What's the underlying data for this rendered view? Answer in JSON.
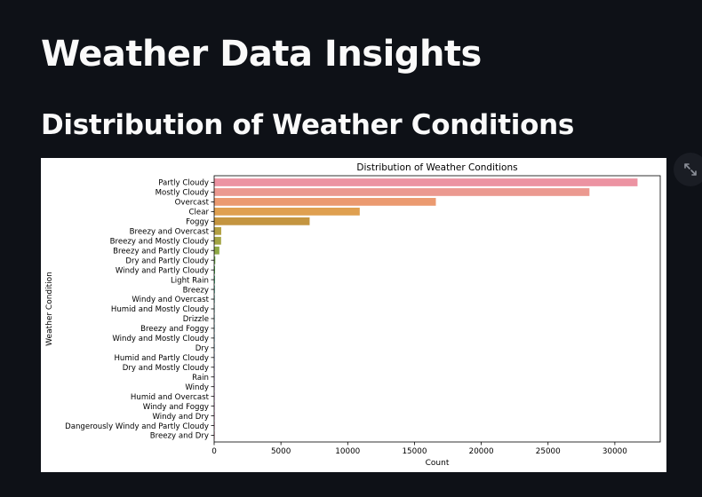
{
  "page": {
    "title": "Weather Data Insights",
    "section_title": "Distribution of Weather Conditions"
  },
  "toolbar": {
    "fullscreen_icon": "expand-icon"
  },
  "colors": {
    "background": "#0e1117",
    "text": "#fafafa",
    "chart_background": "#ffffff"
  },
  "chart_data": {
    "type": "bar",
    "orientation": "horizontal",
    "title": "Distribution of Weather Conditions",
    "xlabel": "Count",
    "ylabel": "Weather Condition",
    "xlim": [
      0,
      33400
    ],
    "xticks": [
      0,
      5000,
      10000,
      15000,
      20000,
      25000,
      30000
    ],
    "grid": false,
    "categories": [
      "Partly Cloudy",
      "Mostly Cloudy",
      "Overcast",
      "Clear",
      "Foggy",
      "Breezy and Overcast",
      "Breezy and Mostly Cloudy",
      "Breezy and Partly Cloudy",
      "Dry and Partly Cloudy",
      "Windy and Partly Cloudy",
      "Light Rain",
      "Breezy",
      "Windy and Overcast",
      "Humid and Mostly Cloudy",
      "Drizzle",
      "Breezy and Foggy",
      "Windy and Mostly Cloudy",
      "Dry",
      "Humid and Partly Cloudy",
      "Dry and Mostly Cloudy",
      "Rain",
      "Windy",
      "Humid and Overcast",
      "Windy and Foggy",
      "Windy and Dry",
      "Dangerously Windy and Partly Cloudy",
      "Breezy and Dry"
    ],
    "values": [
      31700,
      28100,
      16600,
      10900,
      7150,
      530,
      520,
      390,
      86,
      67,
      63,
      54,
      45,
      40,
      39,
      35,
      35,
      34,
      17,
      14,
      10,
      8,
      7,
      4,
      3,
      1,
      1
    ],
    "colors": [
      "#ec93a2",
      "#eb9990",
      "#eb9a70",
      "#dfa050",
      "#c49540",
      "#b3a043",
      "#a3a444",
      "#8fa945",
      "#6dae4a",
      "#4fb04f",
      "#44b376",
      "#45b191",
      "#46b09e",
      "#47afaa",
      "#48aeb5",
      "#49adc0",
      "#4ba9cc",
      "#5aa3d8",
      "#7b9ce3",
      "#9793ea",
      "#b08aea",
      "#c582e5",
      "#d57cdc",
      "#e278cf",
      "#ea76c1",
      "#ed7ab1",
      "#ed84a3"
    ]
  }
}
